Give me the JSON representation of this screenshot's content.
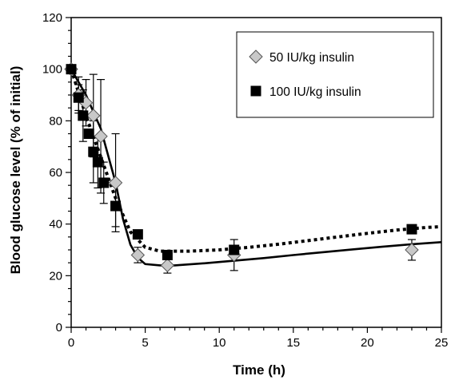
{
  "chart_data": {
    "type": "scatter",
    "xlabel": "Time (h)",
    "ylabel": "Blood glucose level (% of initial)",
    "xlim": [
      0,
      25
    ],
    "ylim": [
      0,
      120
    ],
    "xticks": [
      0,
      5,
      10,
      15,
      20,
      25
    ],
    "yticks": [
      0,
      20,
      40,
      60,
      80,
      100,
      120
    ],
    "x_minor_step": 1,
    "y_minor_step": 5,
    "grid": false,
    "legend_position": "top-right",
    "series": [
      {
        "name": "50 IU/kg insulin",
        "marker": "diamond",
        "fill": "#c8c8c8",
        "line_style": "solid",
        "points": [
          {
            "x": 0,
            "y": 100,
            "err": 0
          },
          {
            "x": 0.5,
            "y": 90,
            "err": 7
          },
          {
            "x": 1,
            "y": 87,
            "err": 9
          },
          {
            "x": 1.5,
            "y": 82,
            "err": 16
          },
          {
            "x": 2,
            "y": 74,
            "err": 22
          },
          {
            "x": 3,
            "y": 56,
            "err": 19
          },
          {
            "x": 4.5,
            "y": 28,
            "err": 3
          },
          {
            "x": 6.5,
            "y": 24,
            "err": 3
          },
          {
            "x": 11,
            "y": 28,
            "err": 6
          },
          {
            "x": 23,
            "y": 30,
            "err": 4
          }
        ],
        "curve": [
          [
            0,
            100
          ],
          [
            1,
            90
          ],
          [
            2,
            77
          ],
          [
            3,
            56
          ],
          [
            3.5,
            42
          ],
          [
            4,
            32
          ],
          [
            4.5,
            27
          ],
          [
            5,
            24.5
          ],
          [
            6,
            24
          ],
          [
            7,
            24
          ],
          [
            9,
            24.8
          ],
          [
            11,
            25.8
          ],
          [
            13,
            26.8
          ],
          [
            15,
            28
          ],
          [
            17,
            29.1
          ],
          [
            19,
            30.2
          ],
          [
            21,
            31.2
          ],
          [
            23,
            32.2
          ],
          [
            25,
            33
          ]
        ]
      },
      {
        "name": "100 IU/kg insulin",
        "marker": "square",
        "fill": "#000000",
        "line_style": "dotted",
        "points": [
          {
            "x": 0,
            "y": 100,
            "err": 0
          },
          {
            "x": 0.5,
            "y": 89,
            "err": 5
          },
          {
            "x": 0.8,
            "y": 82,
            "err": 10
          },
          {
            "x": 1.2,
            "y": 75,
            "err": 0
          },
          {
            "x": 1.5,
            "y": 68,
            "err": 12
          },
          {
            "x": 1.8,
            "y": 64,
            "err": 10
          },
          {
            "x": 2.2,
            "y": 56,
            "err": 8
          },
          {
            "x": 3,
            "y": 47,
            "err": 8
          },
          {
            "x": 4.5,
            "y": 36,
            "err": 0
          },
          {
            "x": 6.5,
            "y": 28,
            "err": 0
          },
          {
            "x": 11,
            "y": 30,
            "err": 0
          },
          {
            "x": 23,
            "y": 38,
            "err": 0
          }
        ],
        "curve": [
          [
            0,
            100
          ],
          [
            1,
            82
          ],
          [
            2,
            66
          ],
          [
            3,
            50
          ],
          [
            4,
            37
          ],
          [
            5,
            31
          ],
          [
            6,
            29.5
          ],
          [
            8,
            29.5
          ],
          [
            10,
            30
          ],
          [
            12,
            31
          ],
          [
            14,
            32.2
          ],
          [
            16,
            33.6
          ],
          [
            18,
            35
          ],
          [
            20,
            36.4
          ],
          [
            22,
            37.7
          ],
          [
            24,
            38.7
          ],
          [
            25,
            39
          ]
        ]
      }
    ]
  }
}
